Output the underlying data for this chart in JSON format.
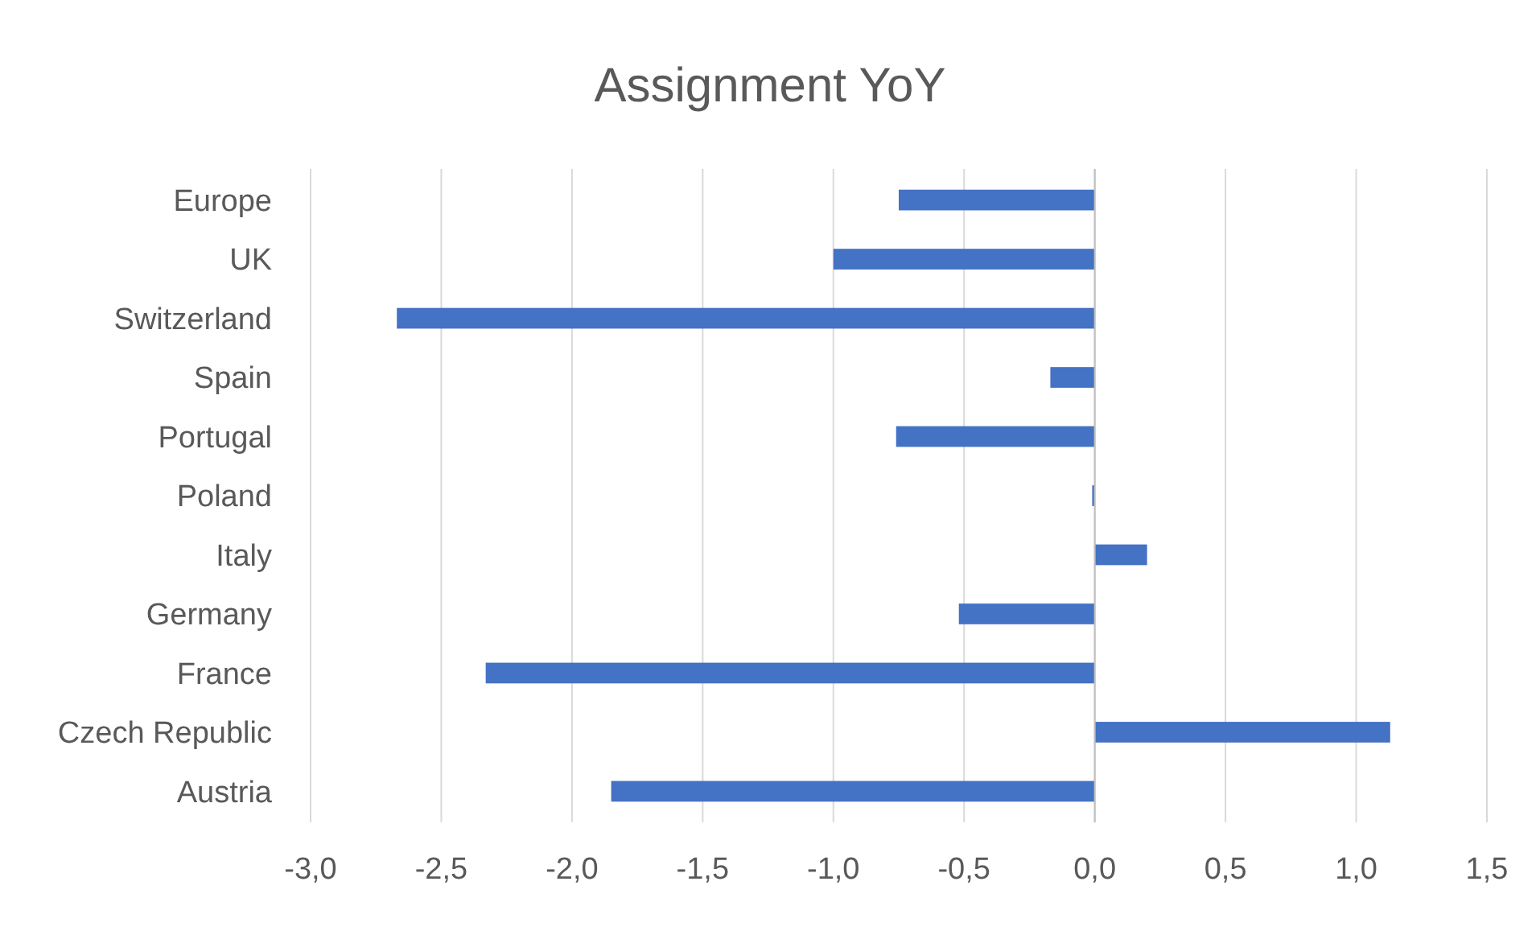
{
  "chart_data": {
    "type": "bar",
    "orientation": "horizontal",
    "title": "Assignment YoY",
    "categories": [
      "Europe",
      "UK",
      "Switzerland",
      "Spain",
      "Portugal",
      "Poland",
      "Italy",
      "Germany",
      "France",
      "Czech Republic",
      "Austria"
    ],
    "values": [
      -0.75,
      -1.0,
      -2.67,
      -0.17,
      -0.76,
      -0.01,
      0.2,
      -0.52,
      -2.33,
      1.13,
      -1.85
    ],
    "color": "#4472c4",
    "xlim": [
      -3.0,
      1.5
    ],
    "xticks": [
      {
        "value": -3.0,
        "label": "-3,0"
      },
      {
        "value": -2.5,
        "label": "-2,5"
      },
      {
        "value": -2.0,
        "label": "-2,0"
      },
      {
        "value": -1.5,
        "label": "-1,5"
      },
      {
        "value": -1.0,
        "label": "-1,0"
      },
      {
        "value": -0.5,
        "label": "-0,5"
      },
      {
        "value": 0,
        "label": "0,0"
      },
      {
        "value": 0.5,
        "label": "0,5"
      },
      {
        "value": 1.0,
        "label": "1,0"
      },
      {
        "value": 1.5,
        "label": "1,5"
      }
    ],
    "grid": "x"
  }
}
